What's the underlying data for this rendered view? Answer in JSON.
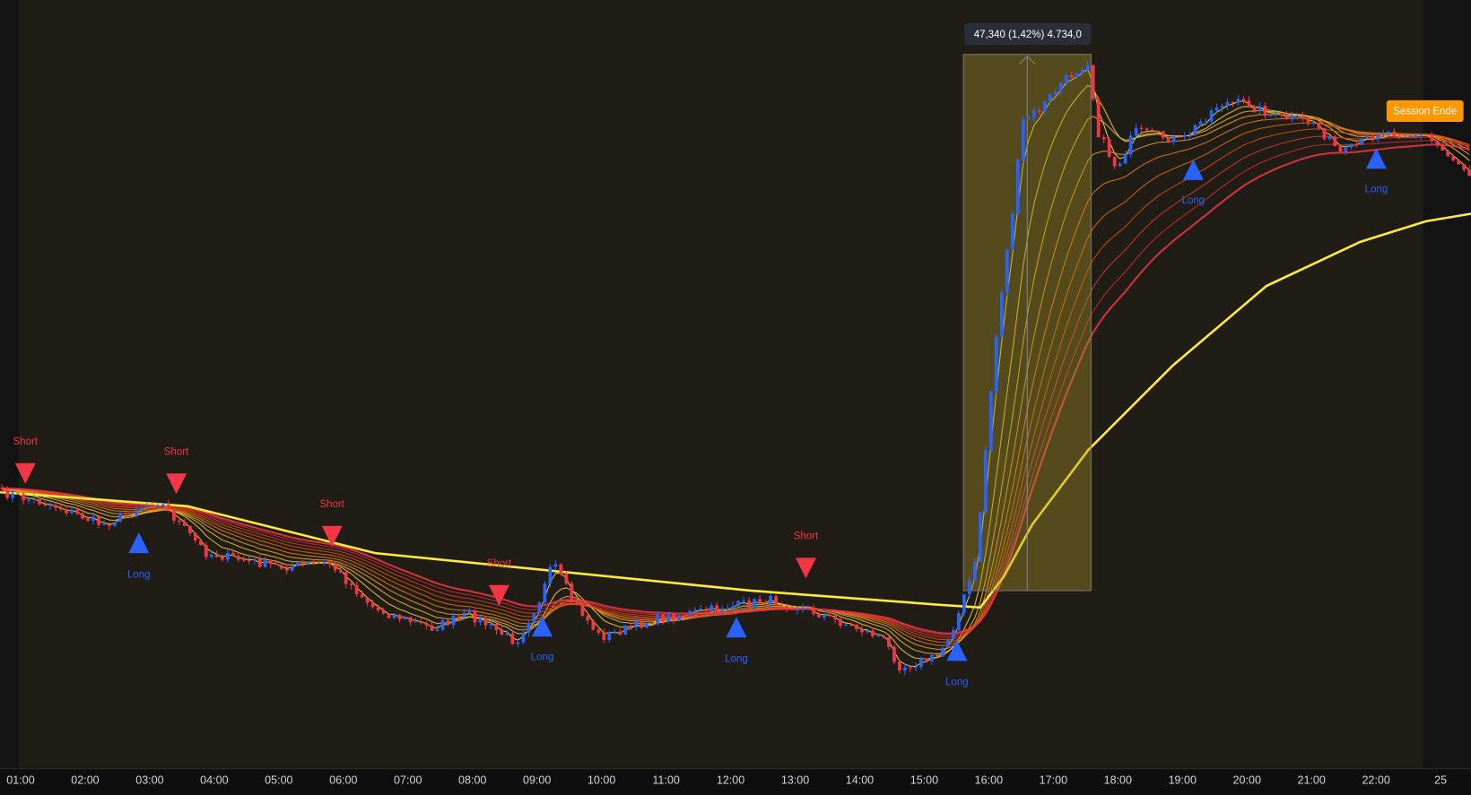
{
  "time_axis": {
    "labels": [
      "01:00",
      "02:00",
      "03:00",
      "04:00",
      "05:00",
      "06:00",
      "07:00",
      "08:00",
      "09:00",
      "10:00",
      "11:00",
      "12:00",
      "13:00",
      "14:00",
      "15:00",
      "16:00",
      "17:00",
      "18:00",
      "19:00",
      "20:00",
      "21:00",
      "22:00",
      "25"
    ]
  },
  "signals": [
    {
      "label": "Short"
    },
    {
      "label": "Long"
    },
    {
      "label": "Short"
    },
    {
      "label": "Short"
    },
    {
      "label": "Short"
    },
    {
      "label": "Long"
    },
    {
      "label": "Long"
    },
    {
      "label": "Short"
    },
    {
      "label": "Long"
    },
    {
      "label": "Long"
    },
    {
      "label": "Long"
    }
  ],
  "measure": {
    "label": "47,340 (1,42%) 4.734,0"
  },
  "session_label": "Session Ende"
}
